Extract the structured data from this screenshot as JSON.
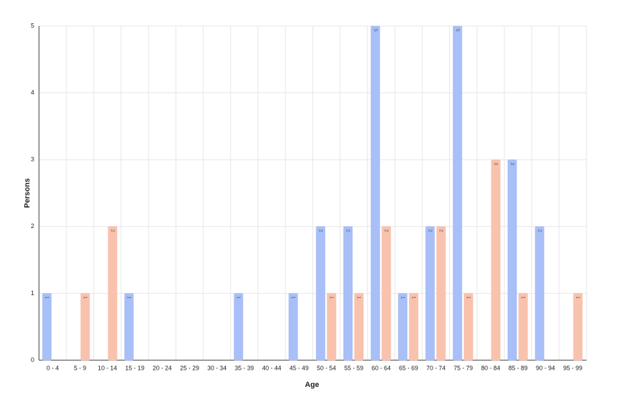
{
  "chart_data": {
    "type": "bar",
    "x_label": "Age",
    "y_label": "Persons",
    "categories": [
      "0 - 4",
      "5 - 9",
      "10 - 14",
      "15 - 19",
      "20 - 24",
      "25 - 29",
      "30 - 34",
      "35 - 39",
      "40 - 44",
      "45 - 49",
      "50 - 54",
      "55 - 59",
      "60 - 64",
      "65 - 69",
      "70 - 74",
      "75 - 79",
      "80 - 84",
      "85 - 89",
      "90 - 94",
      "95 - 99"
    ],
    "series": [
      {
        "color": "#a8bff7",
        "values": [
          1,
          0,
          0,
          1,
          0,
          0,
          0,
          1,
          0,
          1,
          2,
          2,
          5,
          1,
          2,
          5,
          0,
          3,
          2,
          0
        ]
      },
      {
        "color": "#f9c2ad",
        "values": [
          0,
          1,
          2,
          0,
          0,
          0,
          0,
          0,
          0,
          0,
          1,
          1,
          2,
          1,
          2,
          1,
          3,
          1,
          0,
          1
        ]
      }
    ],
    "ylim": [
      0,
      5
    ],
    "yticks": [
      0,
      1,
      2,
      3,
      4,
      5
    ],
    "grid": true
  }
}
